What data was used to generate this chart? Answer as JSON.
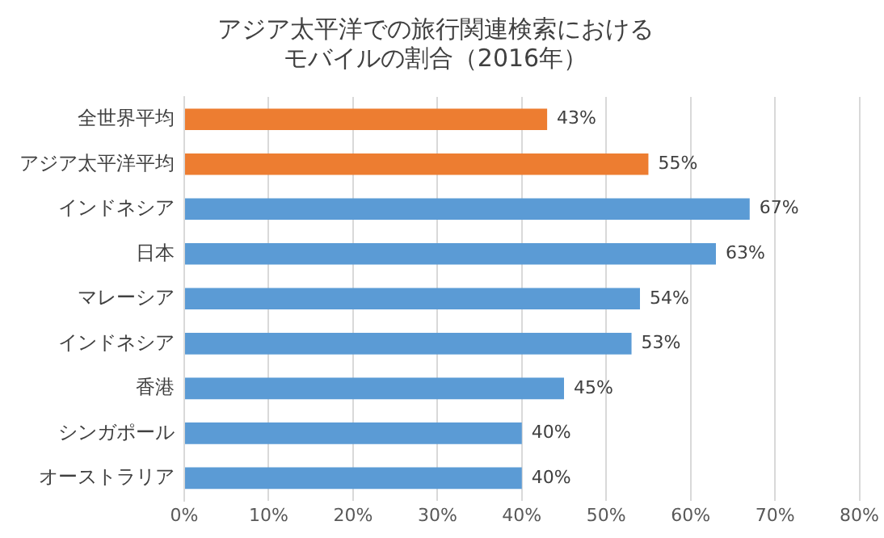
{
  "chart_data": {
    "type": "bar",
    "orientation": "horizontal",
    "title": "アジア太平洋での旅行関連検索におけるモバイルの割合（2016年）",
    "categories": [
      "全世界平均",
      "アジア太平洋平均",
      "インドネシア",
      "日本",
      "マレーシア",
      "インドネシア",
      "香港",
      "シンガポール",
      "オーストラリア"
    ],
    "values": [
      43,
      55,
      67,
      63,
      54,
      53,
      45,
      40,
      40
    ],
    "colors": [
      "#ed7d31",
      "#ed7d31",
      "#5b9bd5",
      "#5b9bd5",
      "#5b9bd5",
      "#5b9bd5",
      "#5b9bd5",
      "#5b9bd5",
      "#5b9bd5"
    ],
    "value_labels": [
      "43%",
      "55%",
      "67%",
      "63%",
      "54%",
      "53%",
      "45%",
      "40%",
      "40%"
    ],
    "xlim": [
      0,
      80
    ],
    "xticks": [
      {
        "value": 0,
        "label": "0%"
      },
      {
        "value": 10,
        "label": "10%"
      },
      {
        "value": 20,
        "label": "20%"
      },
      {
        "value": 30,
        "label": "30%"
      },
      {
        "value": 40,
        "label": "40%"
      },
      {
        "value": 50,
        "label": "50%"
      },
      {
        "value": 60,
        "label": "60%"
      },
      {
        "value": 70,
        "label": "70%"
      },
      {
        "value": 80,
        "label": "80%"
      }
    ],
    "grid": "x"
  }
}
